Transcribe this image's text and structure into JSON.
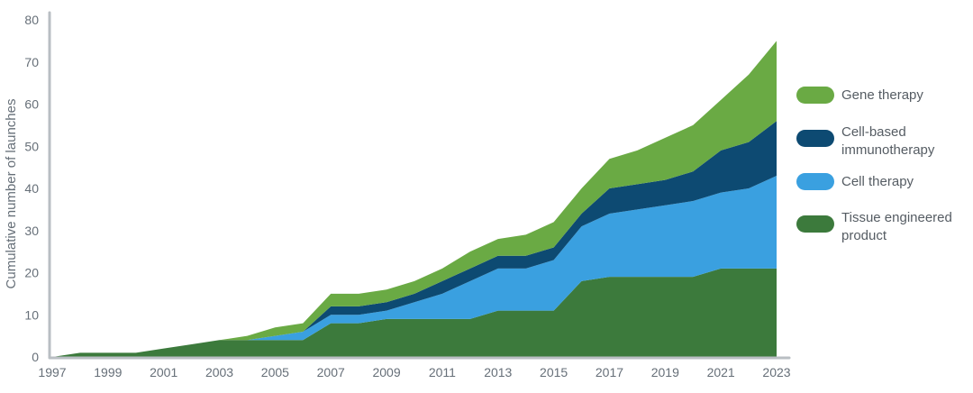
{
  "chart_data": {
    "type": "area",
    "stacked": true,
    "title": "",
    "xlabel": "",
    "ylabel": "Cumulative number of launches",
    "ylim": [
      0,
      80
    ],
    "xlim": [
      1997,
      2023
    ],
    "yticks": [
      0,
      10,
      20,
      30,
      40,
      50,
      60,
      70,
      80
    ],
    "xticks": [
      1997,
      1999,
      2001,
      2003,
      2005,
      2007,
      2009,
      2011,
      2013,
      2015,
      2017,
      2019,
      2021,
      2023
    ],
    "grid": false,
    "legend_position": "right",
    "x": [
      1997,
      1998,
      1999,
      2000,
      2001,
      2002,
      2003,
      2004,
      2005,
      2006,
      2007,
      2008,
      2009,
      2010,
      2011,
      2012,
      2013,
      2014,
      2015,
      2016,
      2017,
      2018,
      2019,
      2020,
      2021,
      2022,
      2023
    ],
    "series": [
      {
        "name": "Tissue engineered product",
        "legend_label": [
          "Tissue engineered",
          "product"
        ],
        "color": "#3c7a3c",
        "values": [
          0,
          1,
          1,
          1,
          2,
          3,
          4,
          4,
          4,
          4,
          8,
          8,
          9,
          9,
          9,
          9,
          11,
          11,
          11,
          18,
          19,
          19,
          19,
          19,
          21,
          21,
          21
        ]
      },
      {
        "name": "Cell therapy",
        "legend_label": [
          "Cell therapy"
        ],
        "color": "#3aa0e0",
        "values": [
          0,
          0,
          0,
          0,
          0,
          0,
          0,
          0,
          1,
          2,
          2,
          2,
          2,
          4,
          6,
          9,
          10,
          10,
          12,
          13,
          15,
          16,
          17,
          18,
          18,
          19,
          22
        ]
      },
      {
        "name": "Cell-based immunotherapy",
        "legend_label": [
          "Cell-based",
          "immunotherapy"
        ],
        "color": "#0d4a72",
        "values": [
          0,
          0,
          0,
          0,
          0,
          0,
          0,
          0,
          0,
          0,
          2,
          2,
          2,
          2,
          3,
          3,
          3,
          3,
          3,
          3,
          6,
          6,
          6,
          7,
          10,
          11,
          13
        ]
      },
      {
        "name": "Gene therapy",
        "legend_label": [
          "Gene therapy"
        ],
        "color": "#6aaa44",
        "values": [
          0,
          0,
          0,
          0,
          0,
          0,
          0,
          1,
          2,
          2,
          3,
          3,
          3,
          3,
          3,
          4,
          4,
          5,
          6,
          6,
          7,
          8,
          10,
          11,
          12,
          16,
          19
        ]
      }
    ],
    "legend_order": [
      "Gene therapy",
      "Cell-based immunotherapy",
      "Cell therapy",
      "Tissue engineered product"
    ],
    "axis_color": "#b9bec3"
  }
}
